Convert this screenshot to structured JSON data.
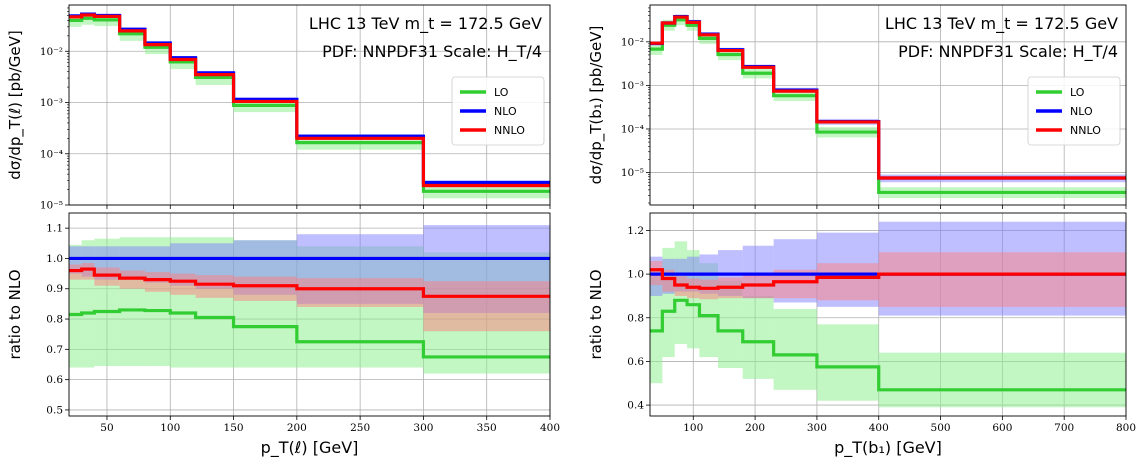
{
  "colors": {
    "lo": "#32cd32",
    "nlo": "#0000ff",
    "nnlo": "#ff0000",
    "lo_band": "#90ee90",
    "nlo_band": "#8080ff",
    "nnlo_band": "#ff8080"
  },
  "chart_data": [
    {
      "type": "line",
      "step": true,
      "panel": "left-top",
      "title_line1": "LHC 13 TeV m_t = 172.5 GeV",
      "title_line2": "PDF: NNPDF31 Scale: H_T/4",
      "ylabel": "dσ/dp_T(ℓ) [pb/GeV]",
      "yscale": "log",
      "ylim": [
        1e-05,
        0.08
      ],
      "xlim": [
        20,
        400
      ],
      "yticks": [
        {
          "v": 1e-05,
          "t": "10⁻⁵"
        },
        {
          "v": 0.0001,
          "t": "10⁻⁴"
        },
        {
          "v": 0.001,
          "t": "10⁻³"
        },
        {
          "v": 0.01,
          "t": "10⁻²"
        }
      ],
      "grid": true,
      "legend_position": "right",
      "edges": [
        20,
        30,
        40,
        60,
        80,
        100,
        120,
        150,
        200,
        300,
        400
      ],
      "series": [
        {
          "name": "LO",
          "key": "lo",
          "values": [
            0.04,
            0.044,
            0.041,
            0.022,
            0.012,
            0.0062,
            0.0031,
            0.00088,
            0.000165,
            1.85e-05
          ],
          "lower": [
            0.03,
            0.033,
            0.031,
            0.016,
            0.0088,
            0.0045,
            0.0022,
            0.00065,
            0.00012,
            1.35e-05
          ],
          "upper": [
            0.05,
            0.055,
            0.051,
            0.027,
            0.015,
            0.0077,
            0.0039,
            0.0011,
            0.00021,
            2.35e-05
          ]
        },
        {
          "name": "NLO",
          "key": "nlo",
          "values": [
            0.049,
            0.053,
            0.05,
            0.027,
            0.0145,
            0.0075,
            0.0038,
            0.00115,
            0.00022,
            2.75e-05
          ],
          "lower": [
            0.046,
            0.05,
            0.047,
            0.025,
            0.0136,
            0.007,
            0.0035,
            0.00105,
            0.0002,
            2.45e-05
          ],
          "upper": [
            0.052,
            0.056,
            0.053,
            0.029,
            0.0155,
            0.008,
            0.0041,
            0.00125,
            0.00024,
            3e-05
          ]
        },
        {
          "name": "NNLO",
          "key": "nnlo",
          "values": [
            0.047,
            0.051,
            0.048,
            0.025,
            0.0135,
            0.0069,
            0.0035,
            0.00105,
            0.0002,
            2.4e-05
          ],
          "lower": [
            0.045,
            0.049,
            0.046,
            0.024,
            0.0128,
            0.0065,
            0.0033,
            0.00098,
            0.000185,
            2.2e-05
          ],
          "upper": [
            0.049,
            0.053,
            0.05,
            0.026,
            0.0142,
            0.0073,
            0.0037,
            0.00112,
            0.000215,
            2.6e-05
          ]
        }
      ]
    },
    {
      "type": "line",
      "step": true,
      "panel": "left-bottom",
      "ylabel": "ratio to NLO",
      "xlabel": "p_T(ℓ) [GeV]",
      "ylim": [
        0.48,
        1.15
      ],
      "xlim": [
        20,
        400
      ],
      "xticks": [
        50,
        100,
        150,
        200,
        250,
        300,
        350,
        400
      ],
      "yticks": [
        0.5,
        0.6,
        0.7,
        0.8,
        0.9,
        1.0,
        1.1
      ],
      "grid": true,
      "edges": [
        20,
        30,
        40,
        60,
        80,
        100,
        120,
        150,
        200,
        300,
        400
      ],
      "series": [
        {
          "name": "LO",
          "key": "lo",
          "values": [
            0.815,
            0.82,
            0.825,
            0.83,
            0.828,
            0.82,
            0.805,
            0.775,
            0.725,
            0.675
          ],
          "lower": [
            0.64,
            0.64,
            0.645,
            0.645,
            0.645,
            0.64,
            0.64,
            0.64,
            0.64,
            0.62
          ],
          "upper": [
            1.045,
            1.06,
            1.065,
            1.07,
            1.07,
            1.07,
            1.07,
            1.06,
            1.04,
            1.02
          ]
        },
        {
          "name": "NLO",
          "key": "nlo",
          "values": [
            1.0,
            1.0,
            1.0,
            1.0,
            1.0,
            1.0,
            1.0,
            1.0,
            1.0,
            1.0
          ],
          "lower": [
            0.95,
            0.94,
            0.93,
            0.93,
            0.92,
            0.91,
            0.9,
            0.88,
            0.85,
            0.82
          ],
          "upper": [
            1.04,
            1.04,
            1.04,
            1.04,
            1.04,
            1.05,
            1.05,
            1.06,
            1.08,
            1.11
          ]
        },
        {
          "name": "NNLO",
          "key": "nnlo",
          "values": [
            0.96,
            0.965,
            0.945,
            0.935,
            0.93,
            0.925,
            0.915,
            0.91,
            0.9,
            0.875
          ],
          "lower": [
            0.93,
            0.93,
            0.91,
            0.9,
            0.89,
            0.88,
            0.87,
            0.86,
            0.84,
            0.76
          ],
          "upper": [
            0.98,
            0.985,
            0.97,
            0.96,
            0.955,
            0.95,
            0.945,
            0.94,
            0.935,
            0.925
          ]
        }
      ]
    },
    {
      "type": "line",
      "step": true,
      "panel": "right-top",
      "title_line1": "LHC 13 TeV m_t = 172.5 GeV",
      "title_line2": "PDF: NNPDF31 Scale: H_T/4",
      "ylabel": "dσ/dp_T(b₁) [pb/GeV]",
      "yscale": "log",
      "ylim": [
        1.8e-06,
        0.07
      ],
      "xlim": [
        30,
        800
      ],
      "yticks": [
        {
          "v": 1e-05,
          "t": "10⁻⁵"
        },
        {
          "v": 0.0001,
          "t": "10⁻⁴"
        },
        {
          "v": 0.001,
          "t": "10⁻³"
        },
        {
          "v": 0.01,
          "t": "10⁻²"
        }
      ],
      "grid": true,
      "legend_position": "right",
      "edges": [
        30,
        50,
        70,
        90,
        110,
        140,
        180,
        230,
        300,
        400,
        800
      ],
      "series": [
        {
          "name": "LO",
          "key": "lo",
          "values": [
            0.0068,
            0.024,
            0.032,
            0.024,
            0.012,
            0.0051,
            0.0019,
            0.00058,
            8.5e-05,
            3.5e-06
          ],
          "lower": [
            0.005,
            0.018,
            0.024,
            0.018,
            0.009,
            0.0038,
            0.00145,
            0.00044,
            6.4e-05,
            2.6e-06
          ],
          "upper": [
            0.009,
            0.032,
            0.042,
            0.031,
            0.016,
            0.0068,
            0.0025,
            0.00076,
            0.00011,
            4.6e-06
          ]
        },
        {
          "name": "NLO",
          "key": "nlo",
          "values": [
            0.0092,
            0.027,
            0.038,
            0.029,
            0.015,
            0.0066,
            0.0027,
            0.00078,
            0.000148,
            7.5e-06
          ],
          "lower": [
            0.0082,
            0.024,
            0.034,
            0.026,
            0.0135,
            0.0059,
            0.0024,
            0.00068,
            0.000125,
            6e-06
          ],
          "upper": [
            0.01,
            0.03,
            0.042,
            0.032,
            0.0165,
            0.0073,
            0.003,
            0.00088,
            0.00017,
            9e-06
          ]
        },
        {
          "name": "NNLO",
          "key": "nnlo",
          "values": [
            0.0093,
            0.027,
            0.037,
            0.028,
            0.0145,
            0.0063,
            0.0026,
            0.00074,
            0.000145,
            7.5e-06
          ],
          "lower": [
            0.0088,
            0.026,
            0.035,
            0.027,
            0.0138,
            0.006,
            0.0025,
            0.0007,
            0.000135,
            6.8e-06
          ],
          "upper": [
            0.0098,
            0.028,
            0.039,
            0.029,
            0.0152,
            0.0066,
            0.0027,
            0.00078,
            0.000155,
            8.2e-06
          ]
        }
      ]
    },
    {
      "type": "line",
      "step": true,
      "panel": "right-bottom",
      "ylabel": "ratio to NLO",
      "xlabel": "p_T(b₁) [GeV]",
      "ylim": [
        0.35,
        1.28
      ],
      "xlim": [
        30,
        800
      ],
      "xticks": [
        100,
        200,
        300,
        400,
        500,
        600,
        700,
        800
      ],
      "yticks": [
        0.4,
        0.6,
        0.8,
        1.0,
        1.2
      ],
      "grid": true,
      "edges": [
        30,
        50,
        70,
        90,
        110,
        140,
        180,
        230,
        300,
        400,
        800
      ],
      "series": [
        {
          "name": "LO",
          "key": "lo",
          "values": [
            0.74,
            0.83,
            0.88,
            0.86,
            0.81,
            0.74,
            0.69,
            0.63,
            0.575,
            0.47
          ],
          "lower": [
            0.5,
            0.62,
            0.68,
            0.66,
            0.62,
            0.57,
            0.52,
            0.47,
            0.42,
            0.39
          ],
          "upper": [
            0.99,
            1.12,
            1.15,
            1.11,
            1.05,
            0.97,
            0.9,
            0.84,
            0.77,
            0.64
          ]
        },
        {
          "name": "NLO",
          "key": "nlo",
          "values": [
            1.0,
            1.0,
            1.0,
            1.0,
            1.0,
            1.0,
            1.0,
            1.0,
            1.0,
            1.0
          ],
          "lower": [
            0.9,
            0.91,
            0.92,
            0.92,
            0.91,
            0.9,
            0.89,
            0.87,
            0.85,
            0.81
          ],
          "upper": [
            1.08,
            1.07,
            1.07,
            1.08,
            1.09,
            1.11,
            1.13,
            1.16,
            1.19,
            1.24
          ]
        },
        {
          "name": "NNLO",
          "key": "nnlo",
          "values": [
            1.02,
            0.98,
            0.95,
            0.94,
            0.935,
            0.94,
            0.95,
            0.965,
            0.985,
            1.0
          ],
          "lower": [
            0.95,
            0.92,
            0.9,
            0.89,
            0.885,
            0.89,
            0.89,
            0.89,
            0.88,
            0.85
          ],
          "upper": [
            1.06,
            1.02,
            0.99,
            0.98,
            0.975,
            0.985,
            1.0,
            1.02,
            1.05,
            1.1
          ]
        }
      ]
    }
  ]
}
